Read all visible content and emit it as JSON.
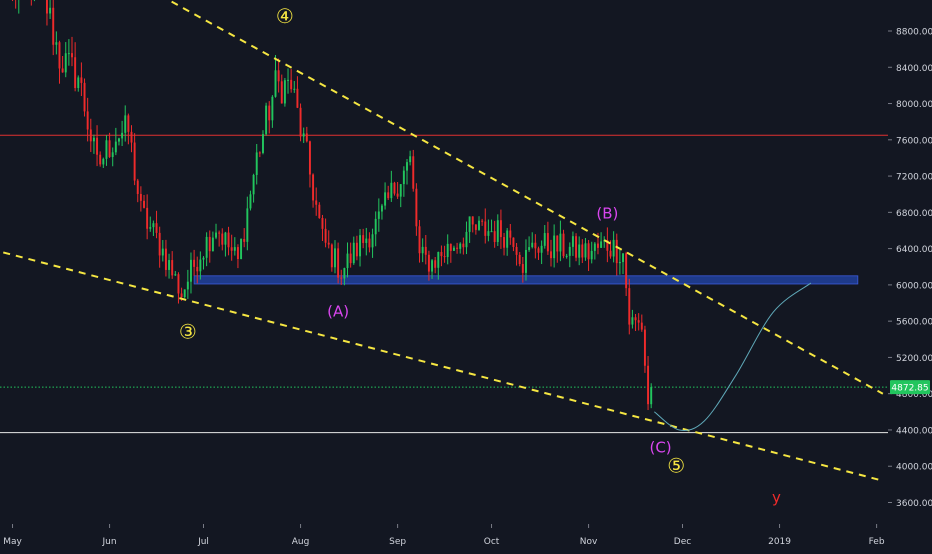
{
  "chart_data": {
    "type": "candlestick",
    "instrument_price_label": "4872.85",
    "x_axis": {
      "labels": [
        "May",
        "Jun",
        "Jul",
        "Aug",
        "Sep",
        "Oct",
        "Nov",
        "Dec",
        "2019",
        "Feb"
      ]
    },
    "y_axis": {
      "labels": [
        "8800.00",
        "8400.00",
        "8000.00",
        "7600.00",
        "7200.00",
        "6800.00",
        "6400.00",
        "6000.00",
        "5600.00",
        "5200.00",
        "4800.00",
        "4400.00",
        "4000.00",
        "3600.00"
      ],
      "range": [
        3380,
        9100
      ],
      "position": "right"
    },
    "anchors": [
      {
        "date": "2018-05-01",
        "price": 9250
      },
      {
        "date": "2018-05-10",
        "price": 9350
      },
      {
        "date": "2018-05-16",
        "price": 8500
      },
      {
        "date": "2018-05-22",
        "price": 8300
      },
      {
        "date": "2018-05-28",
        "price": 7300
      },
      {
        "date": "2018-06-03",
        "price": 7650
      },
      {
        "date": "2018-06-07",
        "price": 7700
      },
      {
        "date": "2018-06-11",
        "price": 6800
      },
      {
        "date": "2018-06-17",
        "price": 6450
      },
      {
        "date": "2018-06-24",
        "price": 5900
      },
      {
        "date": "2018-06-29",
        "price": 6300
      },
      {
        "date": "2018-07-05",
        "price": 6650
      },
      {
        "date": "2018-07-12",
        "price": 6250
      },
      {
        "date": "2018-07-18",
        "price": 7400
      },
      {
        "date": "2018-07-24",
        "price": 8200
      },
      {
        "date": "2018-07-29",
        "price": 8200
      },
      {
        "date": "2018-08-03",
        "price": 7400
      },
      {
        "date": "2018-08-08",
        "price": 6500
      },
      {
        "date": "2018-08-14",
        "price": 6150
      },
      {
        "date": "2018-08-20",
        "price": 6450
      },
      {
        "date": "2018-08-26",
        "price": 6700
      },
      {
        "date": "2018-09-01",
        "price": 7150
      },
      {
        "date": "2018-09-05",
        "price": 7350
      },
      {
        "date": "2018-09-08",
        "price": 6300
      },
      {
        "date": "2018-09-12",
        "price": 6250
      },
      {
        "date": "2018-09-19",
        "price": 6450
      },
      {
        "date": "2018-09-24",
        "price": 6600
      },
      {
        "date": "2018-10-01",
        "price": 6600
      },
      {
        "date": "2018-10-08",
        "price": 6550
      },
      {
        "date": "2018-10-11",
        "price": 6250
      },
      {
        "date": "2018-10-15",
        "price": 6450
      },
      {
        "date": "2018-10-25",
        "price": 6400
      },
      {
        "date": "2018-11-01",
        "price": 6350
      },
      {
        "date": "2018-11-07",
        "price": 6450
      },
      {
        "date": "2018-11-12",
        "price": 6350
      },
      {
        "date": "2018-11-14",
        "price": 5600
      },
      {
        "date": "2018-11-18",
        "price": 5550
      },
      {
        "date": "2018-11-20",
        "price": 4700
      },
      {
        "date": "2018-11-21",
        "price": 4873
      }
    ],
    "horizontal_lines": [
      {
        "price": 7650,
        "color": "#e03030",
        "style": "solid"
      },
      {
        "price": 4872.85,
        "color": "#22c55e",
        "style": "dotted"
      },
      {
        "price": 4370,
        "color": "#e8e8e8",
        "style": "solid"
      }
    ],
    "support_zone": {
      "from": "2018-06-28",
      "to": "2019-01-26",
      "price_low": 6010,
      "price_high": 6100,
      "color": "#1e3a8a"
    },
    "trendlines": [
      {
        "from": {
          "date": "2018-04-20",
          "price": 10300
        },
        "to": {
          "date": "2019-02-03",
          "price": 4800
        },
        "color": "#f5e642",
        "style": "dashed"
      },
      {
        "from": {
          "date": "2018-04-20",
          "price": 6430
        },
        "to": {
          "date": "2019-02-03",
          "price": 3840
        },
        "color": "#f5e642",
        "style": "dashed"
      }
    ],
    "projection_curve": {
      "points": [
        {
          "date": "2018-11-22",
          "price": 4600
        },
        {
          "date": "2018-11-30",
          "price": 4400
        },
        {
          "date": "2018-12-08",
          "price": 4500
        },
        {
          "date": "2018-12-18",
          "price": 5000
        },
        {
          "date": "2018-12-30",
          "price": 5700
        },
        {
          "date": "2019-01-11",
          "price": 6020
        }
      ],
      "color": "#5fa8b8"
    },
    "annotations": [
      {
        "text": "④",
        "date": "2018-07-27",
        "price": 8950,
        "color": "#f5e642"
      },
      {
        "text": "③",
        "date": "2018-06-26",
        "price": 5470,
        "color": "#f5e642"
      },
      {
        "text": "(A)",
        "date": "2018-08-13",
        "price": 5700,
        "color": "#d946ef"
      },
      {
        "text": "(B)",
        "date": "2018-11-07",
        "price": 6780,
        "color": "#d946ef"
      },
      {
        "text": "(C)",
        "date": "2018-11-24",
        "price": 4200,
        "color": "#d946ef"
      },
      {
        "text": "⑤",
        "date": "2018-11-29",
        "price": 3990,
        "color": "#f5e642"
      },
      {
        "text": "y",
        "date": "2018-12-31",
        "price": 3650,
        "color": "#ef2b2b"
      }
    ],
    "colors": {
      "background": "#131722",
      "up": "#22c55e",
      "down": "#ef2b2b",
      "axis_text": "#d1d4dc",
      "price_badge": "#22c55e"
    }
  }
}
